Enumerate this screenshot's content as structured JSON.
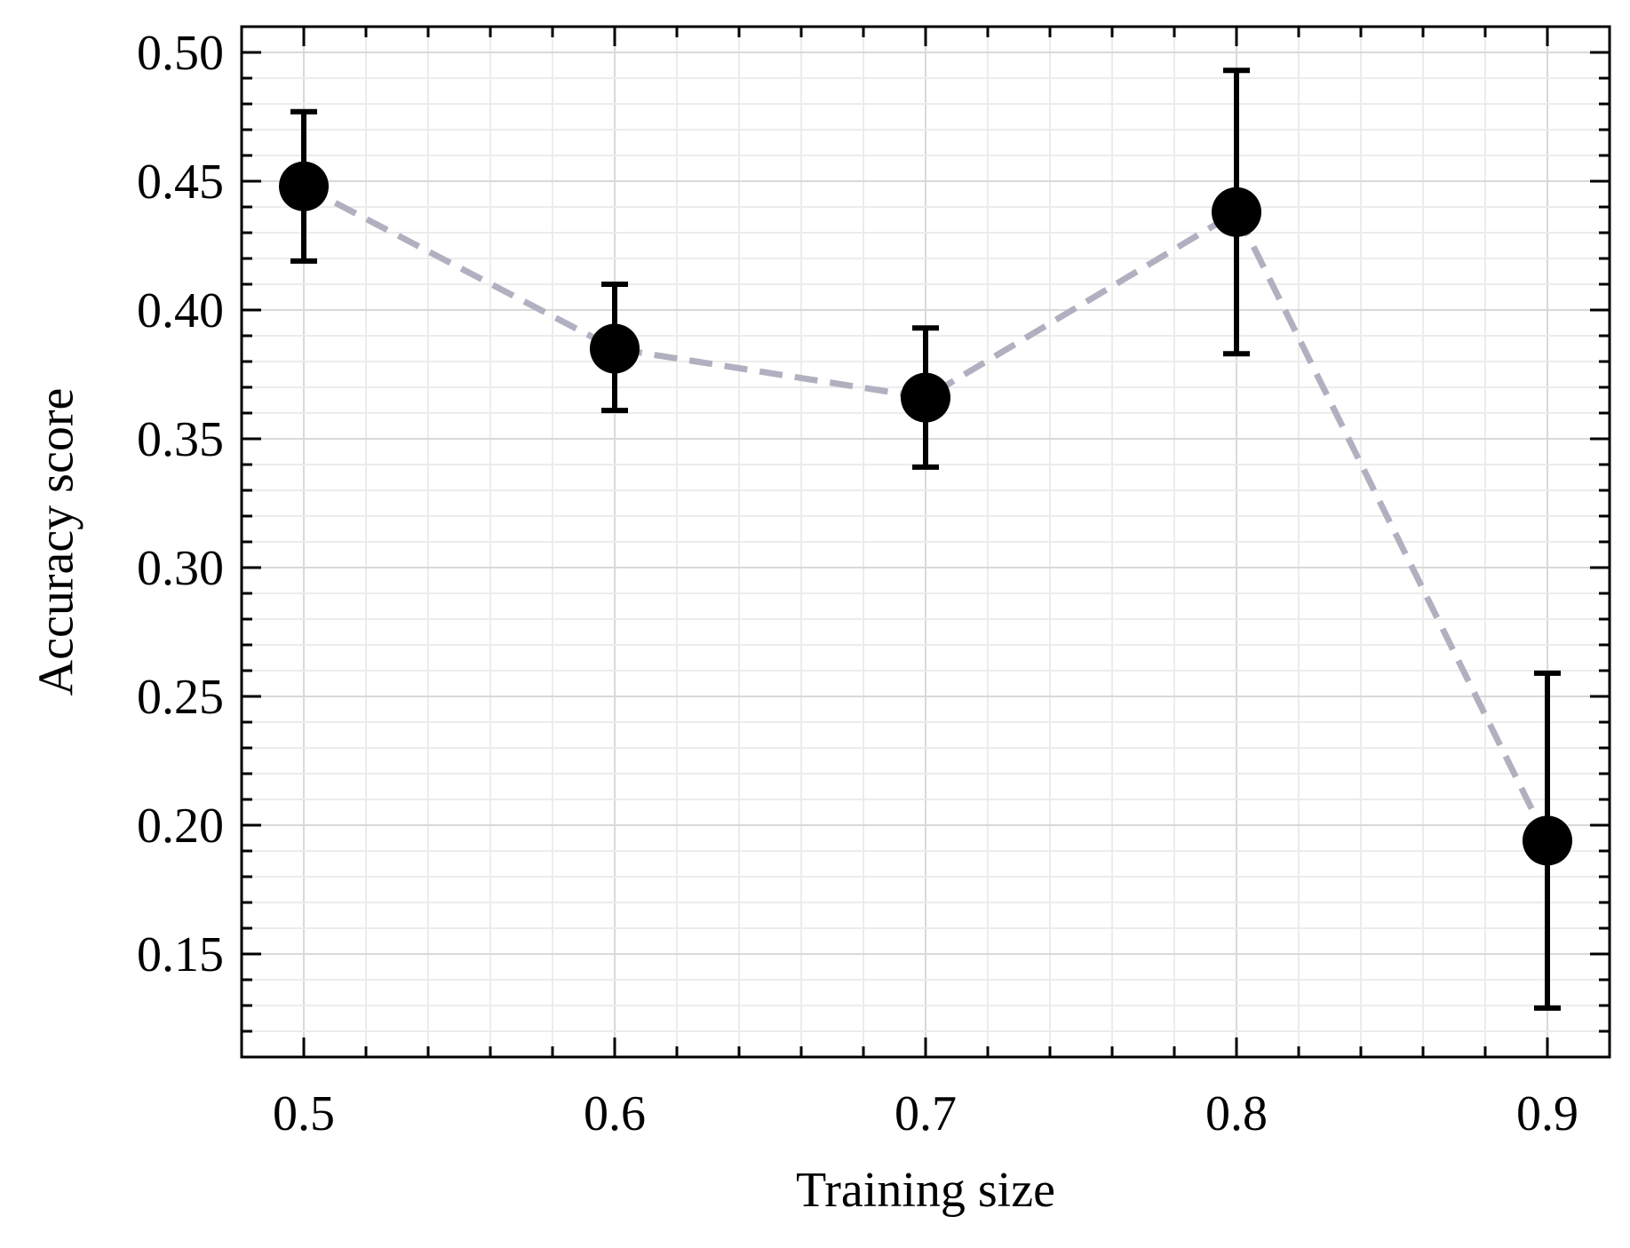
{
  "chart_data": {
    "type": "scatter",
    "title": "",
    "xlabel": "Training size",
    "ylabel": "Accuracy score",
    "xlim": [
      0.48,
      0.92
    ],
    "ylim": [
      0.11,
      0.51
    ],
    "x_ticks": [
      0.5,
      0.6,
      0.7,
      0.8,
      0.9
    ],
    "x_tick_labels": [
      "0.5",
      "0.6",
      "0.7",
      "0.8",
      "0.9"
    ],
    "y_ticks": [
      0.15,
      0.2,
      0.25,
      0.3,
      0.35,
      0.4,
      0.45,
      0.5
    ],
    "y_tick_labels": [
      "0.15",
      "0.20",
      "0.25",
      "0.30",
      "0.35",
      "0.40",
      "0.45",
      "0.50"
    ],
    "x_minor_step": 0.02,
    "y_minor_step": 0.01,
    "grid": true,
    "series": [
      {
        "x": [
          0.5,
          0.6,
          0.7,
          0.8,
          0.9
        ],
        "y": [
          0.448,
          0.385,
          0.366,
          0.438,
          0.194
        ],
        "y_err_lower": [
          0.419,
          0.361,
          0.339,
          0.383,
          0.129
        ],
        "y_err_upper": [
          0.477,
          0.41,
          0.393,
          0.493,
          0.259
        ],
        "marker_color": "#000000",
        "line_color": "#b0b0c0",
        "line_style": "dashed"
      }
    ]
  }
}
